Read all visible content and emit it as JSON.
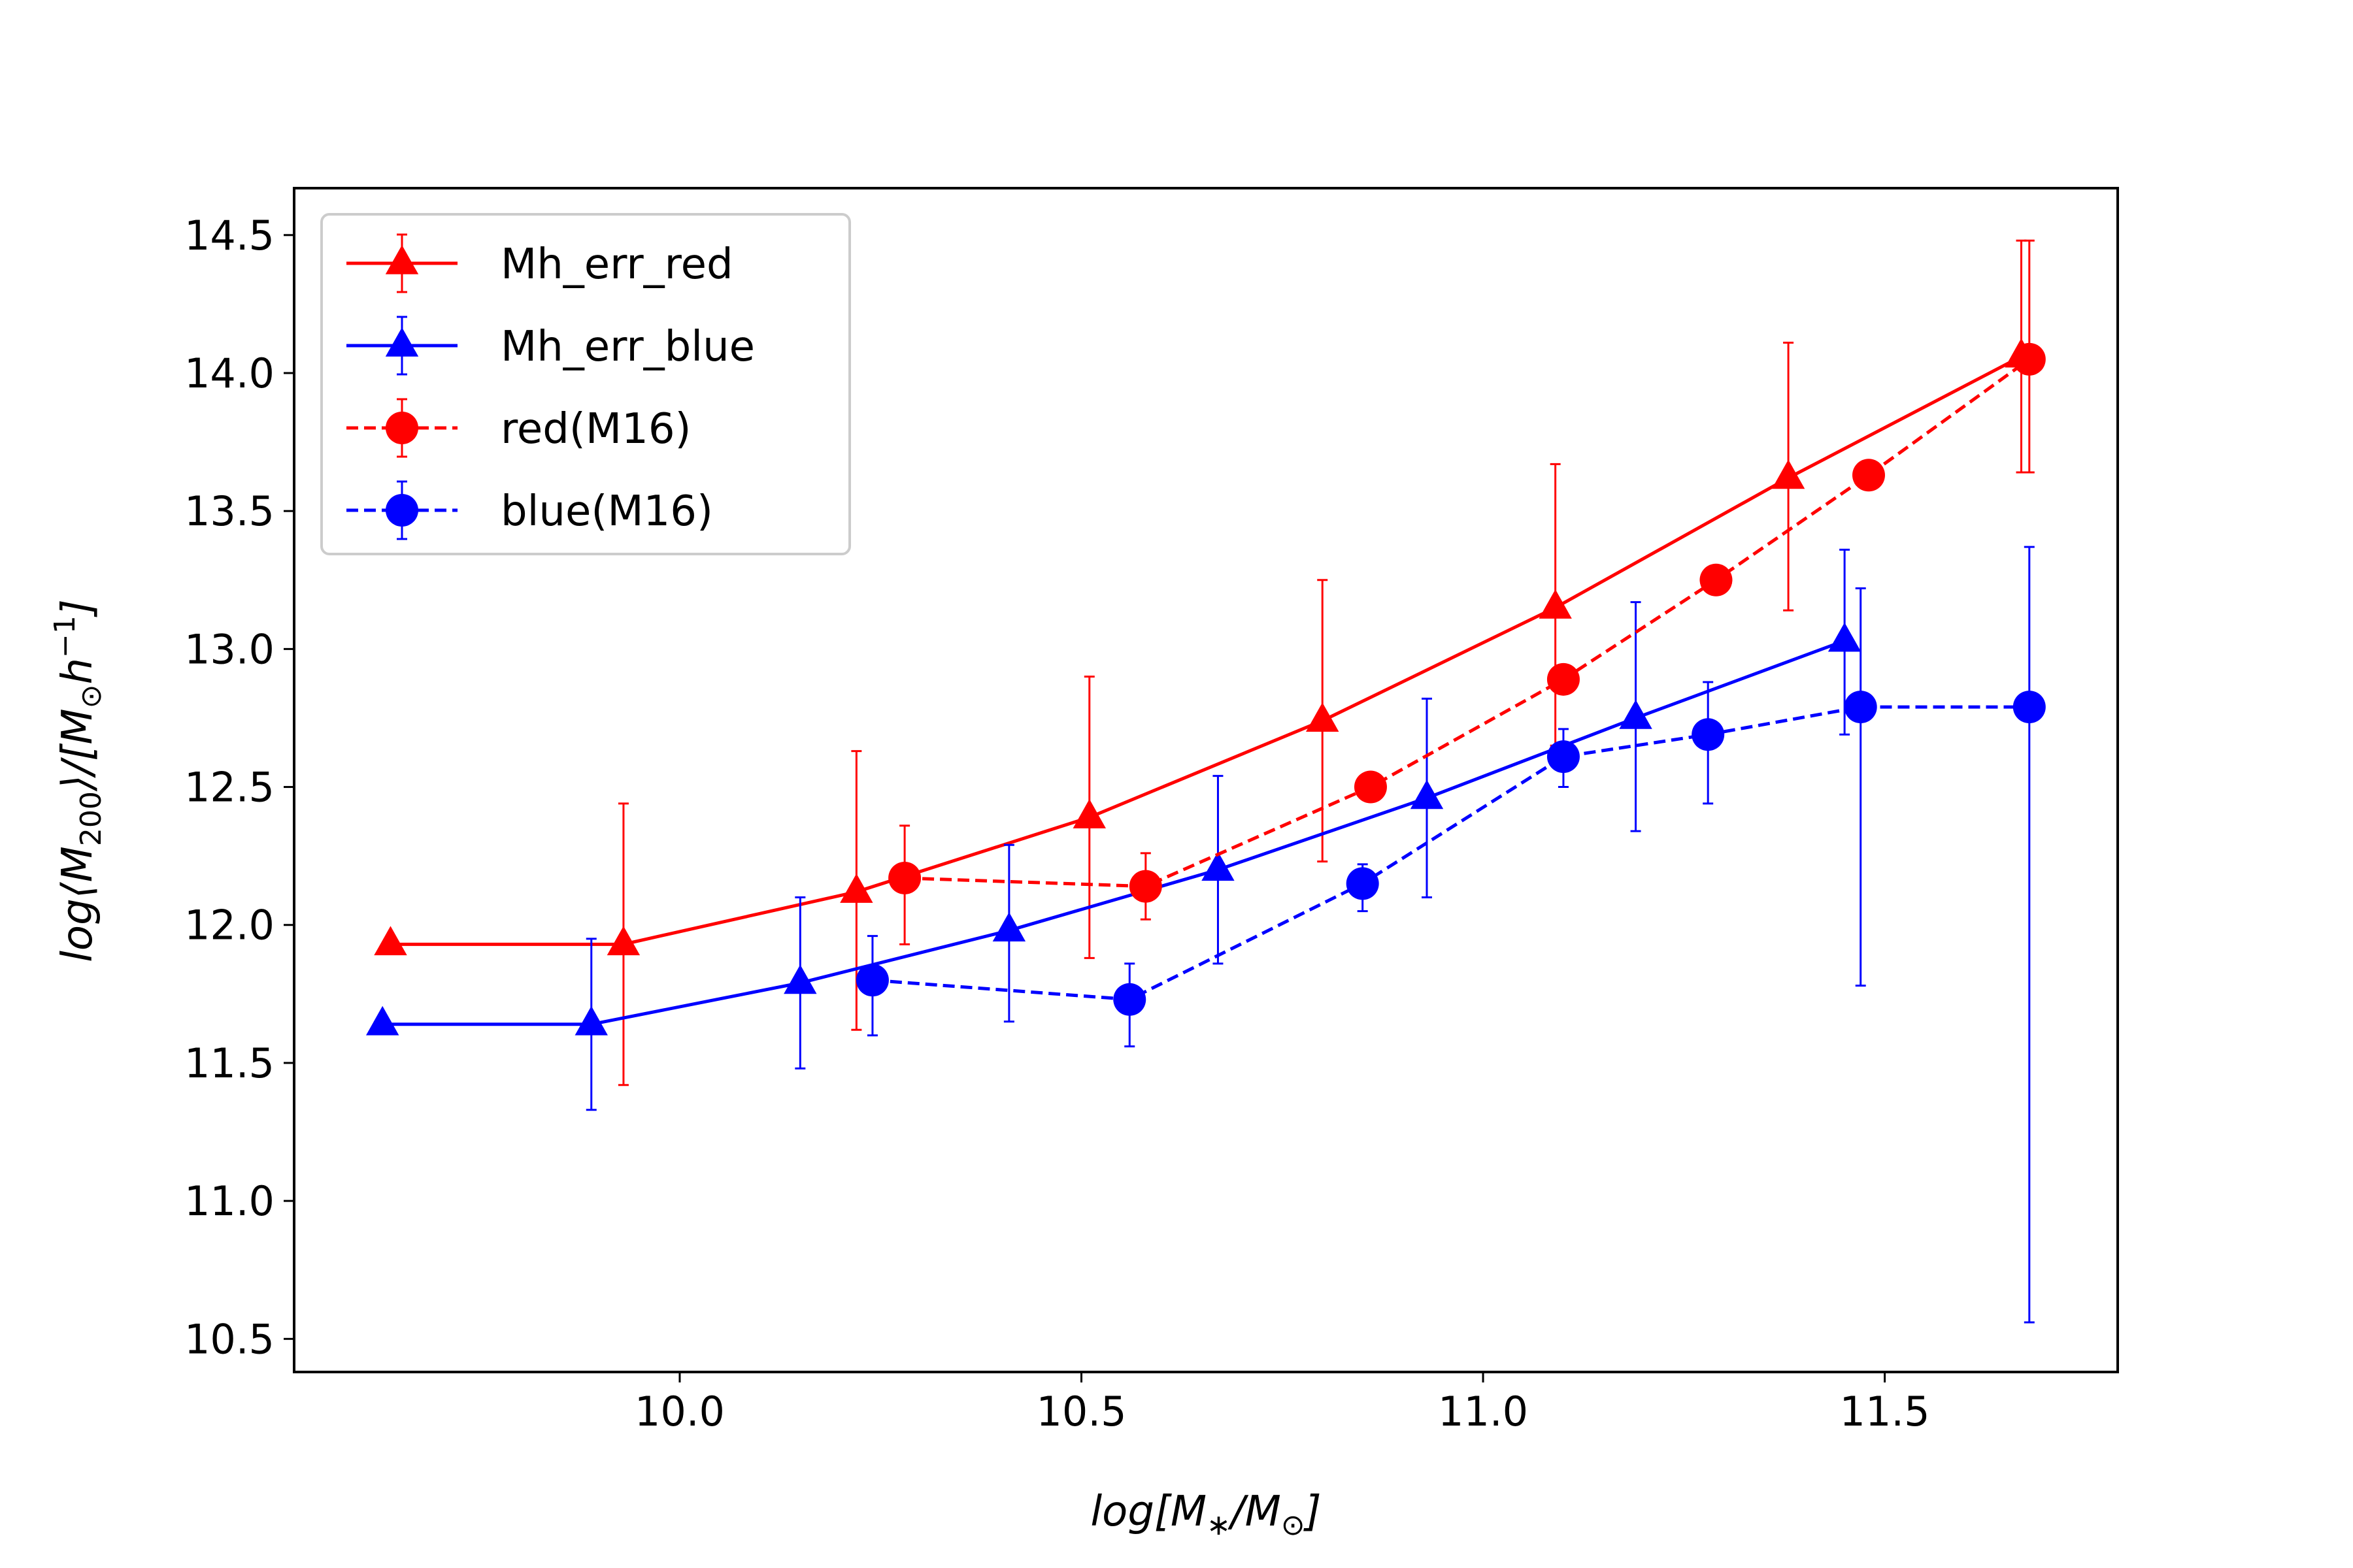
{
  "chart_data": {
    "type": "line",
    "xlabel": "log[M∗/M⊙]",
    "ylabel": "log⟨M200⟩/[M⊙h−1]",
    "xlim": [
      9.52,
      11.79
    ],
    "ylim": [
      10.38,
      14.67
    ],
    "xticks": [
      "10.0",
      "10.5",
      "11.0",
      "11.5"
    ],
    "yticks": [
      "10.5",
      "11.0",
      "11.5",
      "12.0",
      "12.5",
      "13.0",
      "13.5",
      "14.0",
      "14.5"
    ],
    "grid": false,
    "legend_position": "upper-left",
    "series": [
      {
        "name": "Mh_err_red",
        "color": "#ff0000",
        "linestyle": "solid",
        "marker": "triangle",
        "x": [
          9.64,
          9.93,
          10.22,
          10.51,
          10.8,
          11.09,
          11.38,
          11.67
        ],
        "y": [
          11.93,
          11.93,
          12.12,
          12.39,
          12.74,
          13.15,
          13.62,
          14.06
        ],
        "yerr_low": [
          null,
          11.42,
          11.62,
          11.88,
          12.23,
          12.65,
          13.14,
          13.64
        ],
        "yerr_high": [
          null,
          12.44,
          12.63,
          12.9,
          13.25,
          13.67,
          14.11,
          14.48
        ]
      },
      {
        "name": "Mh_err_blue",
        "color": "#0000ff",
        "linestyle": "solid",
        "marker": "triangle",
        "x": [
          9.63,
          9.89,
          10.15,
          10.41,
          10.67,
          10.93,
          11.19,
          11.45
        ],
        "y": [
          11.64,
          11.64,
          11.79,
          11.98,
          12.2,
          12.46,
          12.75,
          13.03
        ],
        "yerr_low": [
          null,
          11.33,
          11.48,
          11.65,
          11.86,
          12.1,
          12.34,
          12.69
        ],
        "yerr_high": [
          null,
          11.95,
          12.1,
          12.29,
          12.54,
          12.82,
          13.17,
          13.36
        ]
      },
      {
        "name": "red(M16)",
        "color": "#ff0000",
        "linestyle": "dashed",
        "marker": "circle",
        "x": [
          10.28,
          10.58,
          10.86,
          11.1,
          11.29,
          11.48,
          11.68
        ],
        "y": [
          12.17,
          12.14,
          12.5,
          12.89,
          13.25,
          13.63,
          14.05
        ],
        "yerr_low": [
          11.93,
          12.02,
          null,
          null,
          null,
          null,
          13.64
        ],
        "yerr_high": [
          12.36,
          12.26,
          null,
          null,
          null,
          null,
          14.48
        ]
      },
      {
        "name": "blue(M16)",
        "color": "#0000ff",
        "linestyle": "dashed",
        "marker": "circle",
        "x": [
          10.24,
          10.56,
          10.85,
          11.1,
          11.28,
          11.47,
          11.68
        ],
        "y": [
          11.8,
          11.73,
          12.15,
          12.61,
          12.69,
          12.79,
          12.79
        ],
        "yerr_low": [
          11.6,
          11.56,
          12.05,
          12.5,
          12.44,
          11.78,
          10.56
        ],
        "yerr_high": [
          11.96,
          11.86,
          12.22,
          12.71,
          12.88,
          13.22,
          13.37
        ]
      }
    ]
  }
}
